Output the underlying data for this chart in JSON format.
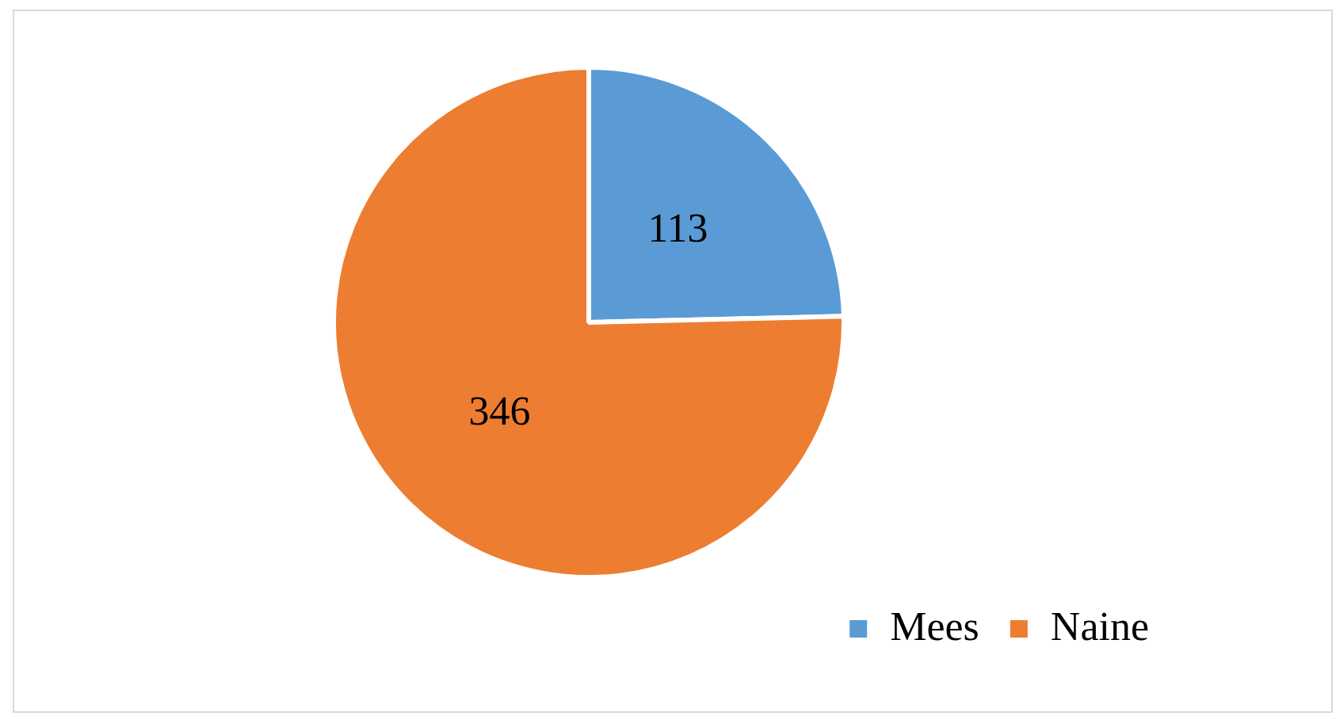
{
  "chart_data": {
    "type": "pie",
    "categories": [
      "Mees",
      "Naine"
    ],
    "values": [
      113,
      346
    ],
    "colors": [
      "#5b9bd5",
      "#ed7d31"
    ],
    "data_labels": true,
    "legend": "bottom right"
  }
}
